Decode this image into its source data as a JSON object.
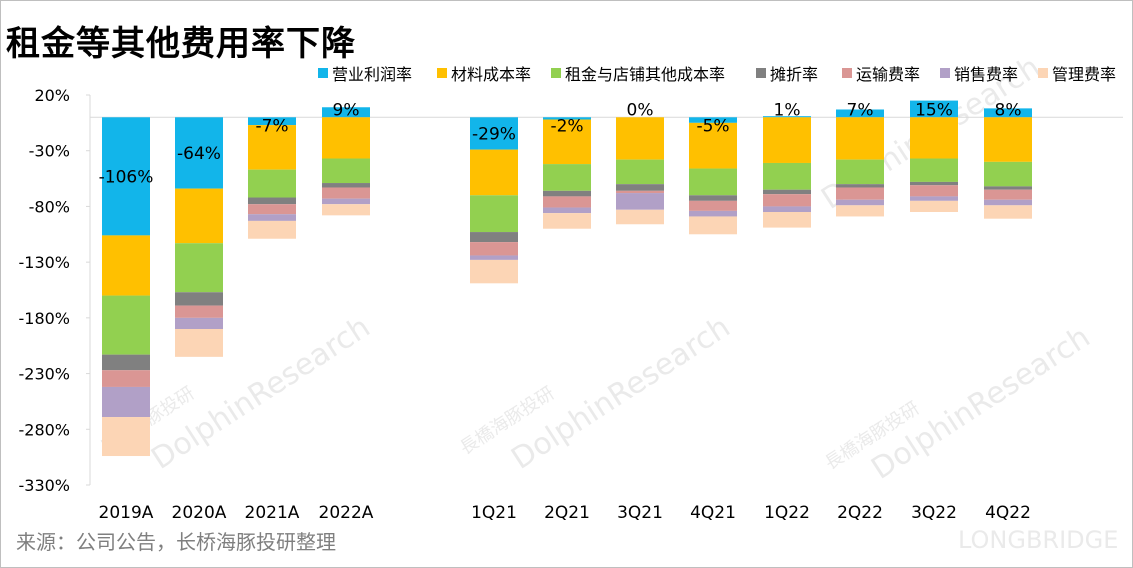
{
  "title": "租金等其他费用率下降",
  "source": "来源：公司公告，长桥海豚投研整理",
  "watermark": {
    "brand_cn": "長橋海豚投研",
    "brand_en": "DolphinResearch",
    "brand_sub": "LONGBRIDGE"
  },
  "colors": {
    "operating_margin": "#12b5ea",
    "material": "#ffc000",
    "rent": "#92d050",
    "depreciation": "#808080",
    "transport": "#da9694",
    "sales": "#b1a0c7",
    "admin": "#fcd5b5"
  },
  "chart_data": {
    "type": "bar",
    "stacked": true,
    "title": "租金等其他费用率下降",
    "ylim": [
      -330,
      20
    ],
    "yticks": [
      20,
      -30,
      -80,
      -130,
      -180,
      -230,
      -280,
      -330
    ],
    "ytick_labels": [
      "20%",
      "-30%",
      "-80%",
      "-130%",
      "-180%",
      "-230%",
      "-280%",
      "-330%"
    ],
    "categories": [
      "2019A",
      "2020A",
      "2021A",
      "2022A",
      "1Q21",
      "2Q21",
      "3Q21",
      "4Q21",
      "1Q22",
      "2Q22",
      "3Q22",
      "4Q22"
    ],
    "legend_position": "top-right",
    "series": [
      {
        "name": "营业利润率",
        "key": "operating_margin",
        "values": [
          -106,
          -64,
          -7,
          9,
          -29,
          -2,
          0,
          -5,
          1,
          7,
          15,
          8
        ]
      },
      {
        "name": "材料成本率",
        "key": "material",
        "values": [
          -54,
          -49,
          -40,
          -37,
          -41,
          -40,
          -38,
          -41,
          -41,
          -38,
          -37,
          -40
        ]
      },
      {
        "name": "租金与店铺其他成本率",
        "key": "rent",
        "values": [
          -53,
          -44,
          -25,
          -22,
          -33,
          -24,
          -22,
          -24,
          -24,
          -22,
          -21,
          -22
        ]
      },
      {
        "name": "摊折率",
        "key": "depreciation",
        "values": [
          -14,
          -12,
          -6,
          -4,
          -9,
          -5,
          -6,
          -5,
          -4,
          -3,
          -3,
          -3
        ]
      },
      {
        "name": "运输费率",
        "key": "transport",
        "values": [
          -15,
          -11,
          -9,
          -10,
          -12,
          -10,
          -2,
          -9,
          -11,
          -11,
          -10,
          -9
        ]
      },
      {
        "name": "销售费率",
        "key": "sales",
        "values": [
          -27,
          -10,
          -6,
          -5,
          -4,
          -5,
          -15,
          -5,
          -5,
          -5,
          -4,
          -5
        ]
      },
      {
        "name": "管理费率",
        "key": "admin",
        "values": [
          -35,
          -25,
          -16,
          -10,
          -21,
          -14,
          -13,
          -16,
          -14,
          -10,
          -10,
          -12
        ]
      }
    ],
    "data_labels": [
      "-106%",
      "-64%",
      "-7%",
      "9%",
      "-29%",
      "-2%",
      "0%",
      "-5%",
      "1%",
      "7%",
      "15%",
      "8%"
    ]
  }
}
